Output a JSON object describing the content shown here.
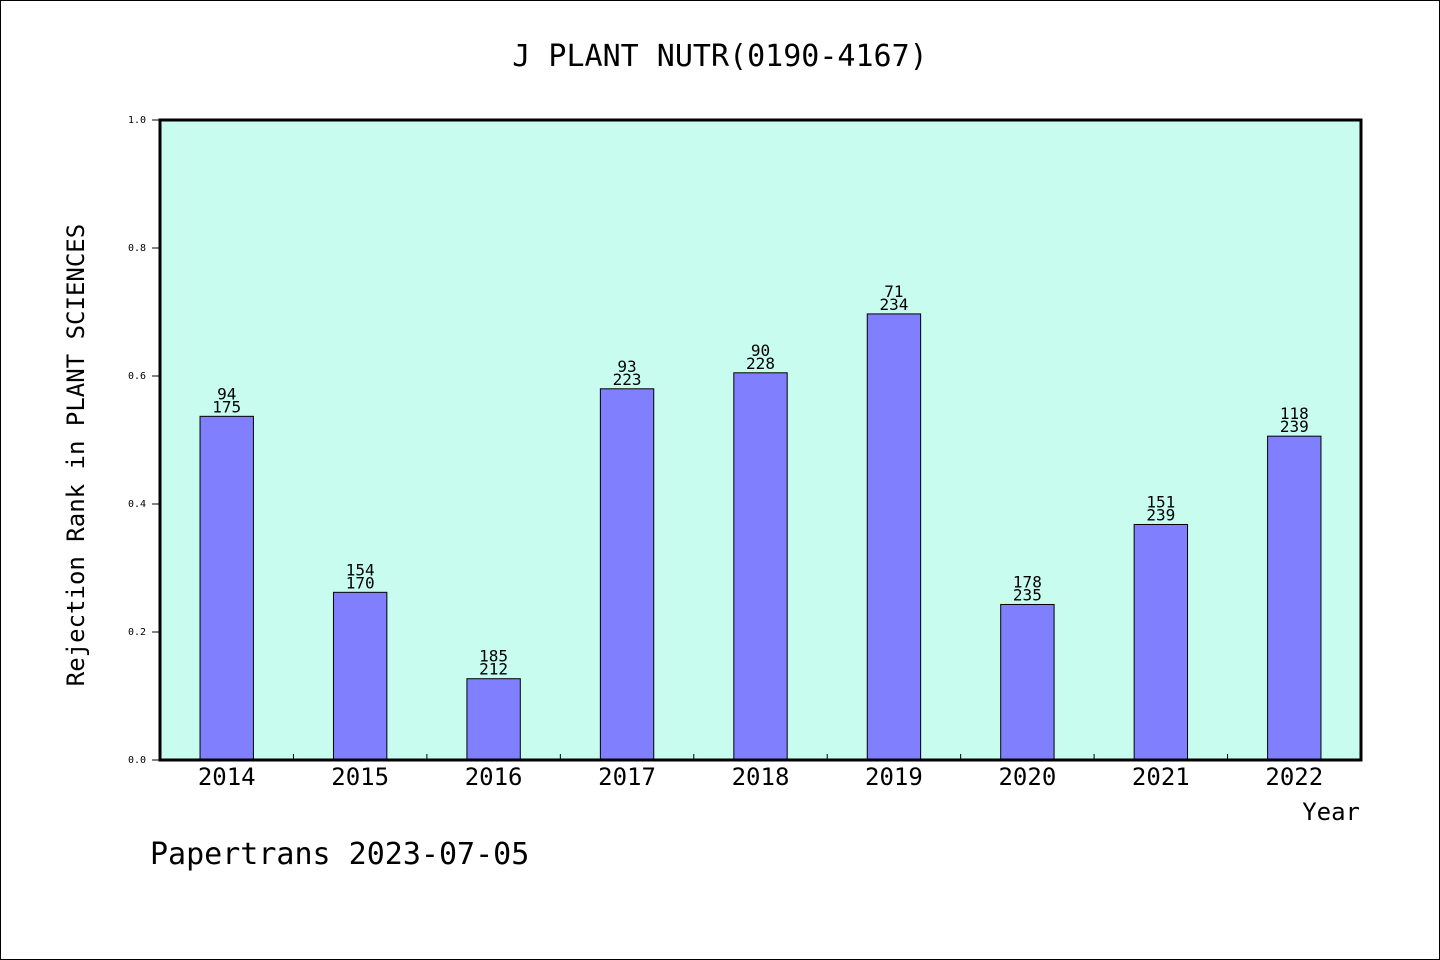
{
  "chart_data": {
    "type": "bar",
    "title": "J PLANT NUTR(0190-4167)",
    "xlabel": "Year",
    "ylabel": "Rejection Rank in PLANT SCIENCES",
    "footer": "Papertrans 2023-07-05",
    "categories": [
      "2014",
      "2015",
      "2016",
      "2017",
      "2018",
      "2019",
      "2020",
      "2021",
      "2022"
    ],
    "values": [
      0.537,
      0.262,
      0.127,
      0.58,
      0.605,
      0.697,
      0.243,
      0.368,
      0.506
    ],
    "label_top": [
      "94",
      "154",
      "185",
      "93",
      "90",
      "71",
      "178",
      "151",
      "118"
    ],
    "label_bottom": [
      "175",
      "170",
      "212",
      "223",
      "228",
      "234",
      "235",
      "239",
      "239"
    ],
    "ylim": [
      0,
      1.0
    ],
    "yticks": [
      "0.0",
      "0.2",
      "0.4",
      "0.6",
      "0.8",
      "1.0"
    ],
    "grid": false,
    "colors": {
      "plot_background": "#c8fcee",
      "bar_fill": "#8080ff",
      "bar_stroke": "#000000"
    }
  }
}
